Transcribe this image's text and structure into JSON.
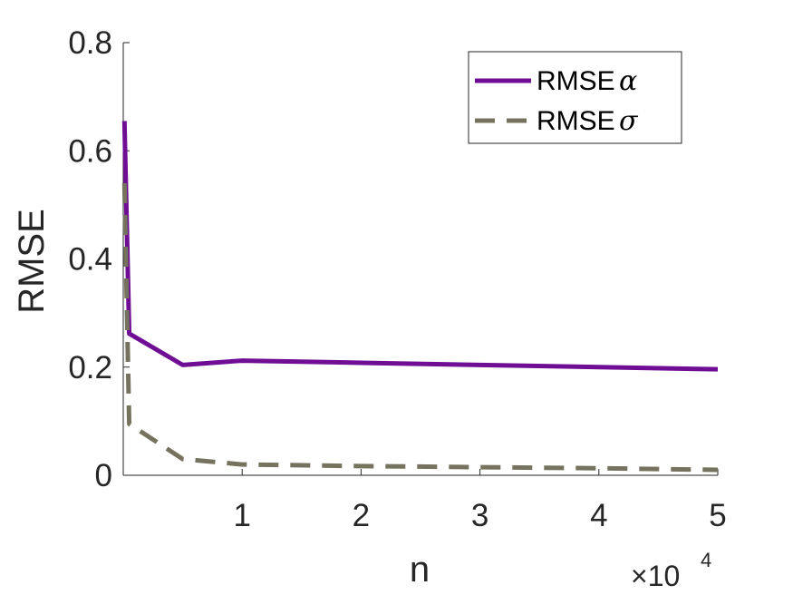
{
  "chart_data": {
    "type": "line",
    "xlabel": "n",
    "ylabel": "RMSE",
    "x_exponent_label": {
      "base": "×10",
      "exponent": "4"
    },
    "xlim": [
      0,
      5
    ],
    "ylim": [
      0,
      0.8
    ],
    "x_ticks": [
      1,
      2,
      3,
      4,
      5
    ],
    "y_ticks": [
      0,
      0.2,
      0.4,
      0.6,
      0.8
    ],
    "x_tick_labels": [
      "1",
      "2",
      "3",
      "4",
      "5"
    ],
    "y_tick_labels": [
      "0",
      "0.2",
      "0.4",
      "0.6",
      "0.8"
    ],
    "grid": false,
    "legend_position": "top-right",
    "series": [
      {
        "name": "RMSE α",
        "legend_text": "RMSE",
        "legend_symbol": "α",
        "color": "#6f0d94",
        "style": "solid",
        "x": [
          0.01,
          0.05,
          0.5,
          1,
          2,
          3,
          4,
          5
        ],
        "y": [
          0.655,
          0.262,
          0.204,
          0.212,
          0.208,
          0.204,
          0.2,
          0.196
        ]
      },
      {
        "name": "RMSE σ",
        "legend_text": "RMSE",
        "legend_symbol": "σ",
        "color": "#75735e",
        "style": "dashed",
        "x": [
          0.01,
          0.05,
          0.5,
          1,
          2,
          3,
          4,
          5
        ],
        "y": [
          0.54,
          0.095,
          0.03,
          0.02,
          0.017,
          0.015,
          0.013,
          0.01
        ]
      }
    ]
  }
}
